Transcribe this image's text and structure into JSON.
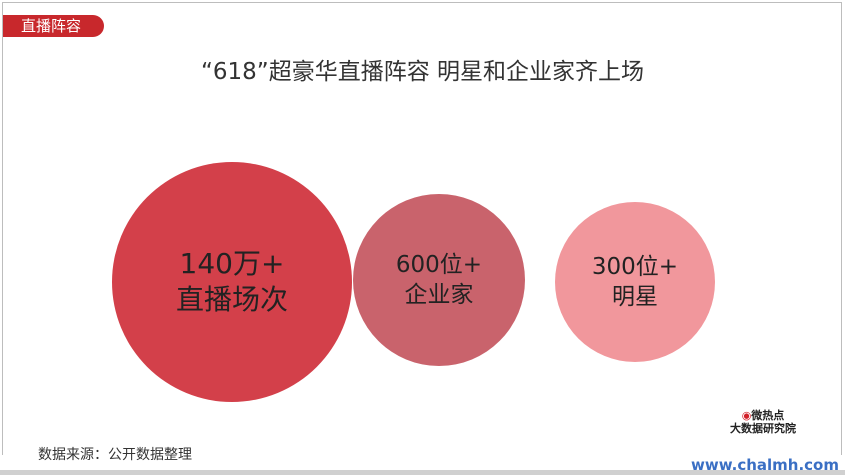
{
  "tag": "直播阵容",
  "title": "“618”超豪华直播阵容 明星和企业家齐上场",
  "circles": [
    {
      "value": "140万+",
      "label": "直播场次",
      "color": "#d3404a"
    },
    {
      "value": "600位+",
      "label": "企业家",
      "color": "#c9636c"
    },
    {
      "value": "300位+",
      "label": "明星",
      "color": "#f1979c"
    }
  ],
  "source": "数据来源：公开数据整理",
  "logo": {
    "line1": "微热点",
    "line2": "大数据研究院"
  },
  "watermark": "www.chalmh.com"
}
